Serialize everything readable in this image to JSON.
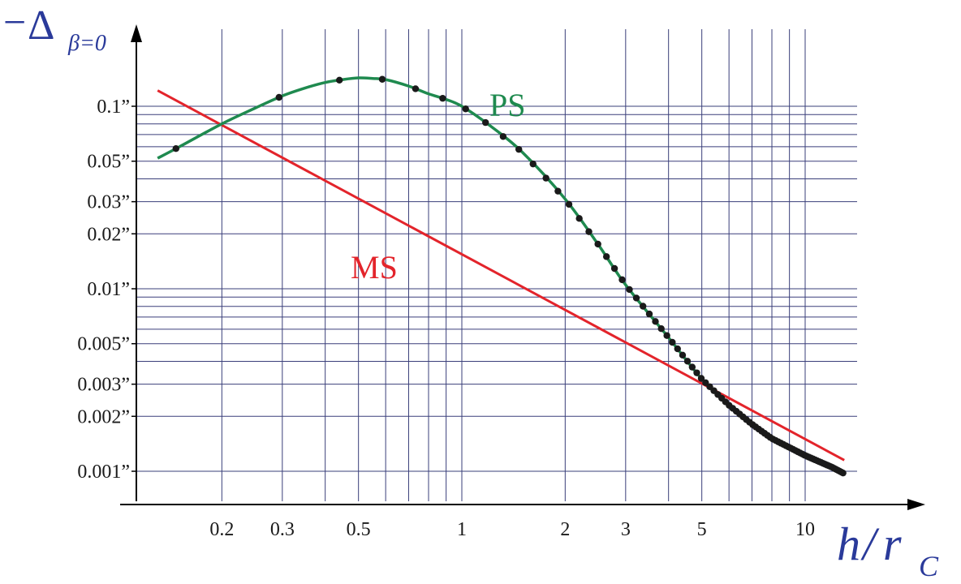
{
  "chart_data": {
    "type": "line",
    "title": "",
    "xlabel": "h/r_C",
    "xlabel_parts": {
      "h": "h",
      "slash": "/",
      "r": "r",
      "sub": "C"
    },
    "ylabel": "−Δβ=0",
    "ylabel_parts": {
      "sign": "−",
      "delta": "Δ",
      "sub": "β=0"
    },
    "x_scale": "log",
    "y_scale": "log",
    "xlim": [
      0.13,
      14
    ],
    "ylim": [
      0.00075,
      0.18
    ],
    "grid": true,
    "x_ticks": [
      {
        "value": 0.2,
        "label": "0.2"
      },
      {
        "value": 0.3,
        "label": "0.3"
      },
      {
        "value": 0.5,
        "label": "0.5"
      },
      {
        "value": 1,
        "label": "1"
      },
      {
        "value": 2,
        "label": "2"
      },
      {
        "value": 3,
        "label": "3"
      },
      {
        "value": 5,
        "label": "5"
      },
      {
        "value": 10,
        "label": "10"
      }
    ],
    "y_ticks": [
      {
        "value": 0.1,
        "label": "0.1”"
      },
      {
        "value": 0.05,
        "label": "0.05”"
      },
      {
        "value": 0.03,
        "label": "0.03”"
      },
      {
        "value": 0.02,
        "label": "0.02”"
      },
      {
        "value": 0.01,
        "label": "0.01”"
      },
      {
        "value": 0.005,
        "label": "0.005”"
      },
      {
        "value": 0.003,
        "label": "0.003”"
      },
      {
        "value": 0.002,
        "label": "0.002”"
      },
      {
        "value": 0.001,
        "label": "0.001”"
      }
    ],
    "x_grid": [
      0.2,
      0.3,
      0.4,
      0.5,
      0.6,
      0.7,
      0.8,
      0.9,
      1,
      2,
      3,
      4,
      5,
      6,
      7,
      8,
      9,
      10
    ],
    "y_grid": [
      0.001,
      0.002,
      0.003,
      0.004,
      0.005,
      0.006,
      0.007,
      0.008,
      0.009,
      0.01,
      0.02,
      0.03,
      0.04,
      0.05,
      0.06,
      0.07,
      0.08,
      0.09,
      0.1
    ],
    "series": [
      {
        "name": "PS",
        "color": "#1f8a4f",
        "curve": [
          {
            "x": 0.13,
            "y": 0.0519
          },
          {
            "x": 0.15,
            "y": 0.0598
          },
          {
            "x": 0.2,
            "y": 0.0801
          },
          {
            "x": 0.25,
            "y": 0.0977
          },
          {
            "x": 0.3,
            "y": 0.114
          },
          {
            "x": 0.35,
            "y": 0.126
          },
          {
            "x": 0.4,
            "y": 0.135
          },
          {
            "x": 0.45,
            "y": 0.14
          },
          {
            "x": 0.5,
            "y": 0.143
          },
          {
            "x": 0.55,
            "y": 0.142
          },
          {
            "x": 0.6,
            "y": 0.14
          },
          {
            "x": 0.7,
            "y": 0.129
          },
          {
            "x": 0.8,
            "y": 0.117
          },
          {
            "x": 0.9,
            "y": 0.109
          },
          {
            "x": 1.0,
            "y": 0.1
          },
          {
            "x": 1.2,
            "y": 0.079
          },
          {
            "x": 1.5,
            "y": 0.056
          },
          {
            "x": 2.0,
            "y": 0.031
          },
          {
            "x": 2.5,
            "y": 0.0174
          },
          {
            "x": 3.0,
            "y": 0.0105
          },
          {
            "x": 4.0,
            "y": 0.0054
          },
          {
            "x": 5.0,
            "y": 0.0032
          },
          {
            "x": 6.0,
            "y": 0.0023
          },
          {
            "x": 7.0,
            "y": 0.00181
          },
          {
            "x": 8.0,
            "y": 0.00151
          },
          {
            "x": 10.0,
            "y": 0.00122
          },
          {
            "x": 12.0,
            "y": 0.00105
          },
          {
            "x": 13.0,
            "y": 0.00097
          }
        ],
        "markers": {
          "x_start": 0.147,
          "x_step": 0.1465,
          "count": 89
        }
      },
      {
        "name": "MS",
        "color": "#e3242b",
        "curve": [
          {
            "x": 0.13,
            "y": 0.122
          },
          {
            "x": 13.0,
            "y": 0.00115
          }
        ]
      }
    ]
  }
}
